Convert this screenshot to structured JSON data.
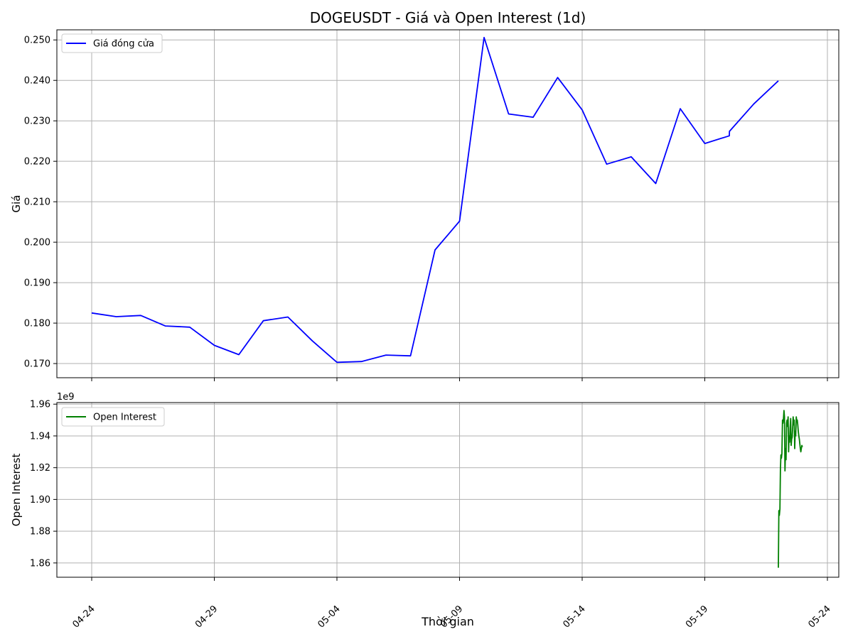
{
  "chart_data": {
    "type": "line",
    "title": "DOGEUSDT - Giá và Open Interest (1d)",
    "xlabel": "Thời gian",
    "x_ticks": [
      "04-24",
      "04-29",
      "05-04",
      "05-09",
      "05-14",
      "05-19",
      "05-24"
    ],
    "colors": {
      "price": "#0000ff",
      "oi": "#008000",
      "grid": "#b0b0b0"
    },
    "price_panel": {
      "ylabel": "Giá",
      "ylim": [
        0.1665,
        0.2525
      ],
      "y_ticks": [
        "0.170",
        "0.180",
        "0.190",
        "0.200",
        "0.210",
        "0.220",
        "0.230",
        "0.240",
        "0.250"
      ],
      "legend": "top-left",
      "grid": true,
      "series": [
        {
          "name": "Giá đóng cửa",
          "x": [
            "2025-04-24",
            "2025-04-25",
            "2025-04-26",
            "2025-04-27",
            "2025-04-28",
            "2025-04-29",
            "2025-04-30",
            "2025-05-01",
            "2025-05-02",
            "2025-05-03",
            "2025-05-04",
            "2025-05-05",
            "2025-05-06",
            "2025-05-07",
            "2025-05-08",
            "2025-05-09",
            "2025-05-10",
            "2025-05-11",
            "2025-05-12",
            "2025-05-13",
            "2025-05-14",
            "2025-05-15",
            "2025-05-16",
            "2025-05-17",
            "2025-05-18",
            "2025-05-19",
            "2025-05-20 00:00",
            "2025-05-20 00:10",
            "2025-05-21",
            "2025-05-22"
          ],
          "values": [
            0.1825,
            0.1816,
            0.1819,
            0.1793,
            0.179,
            0.1745,
            0.1722,
            0.1806,
            0.1815,
            0.1756,
            0.1703,
            0.1705,
            0.1721,
            0.1719,
            0.1981,
            0.2052,
            0.2506,
            0.2317,
            0.2309,
            0.2407,
            0.2327,
            0.2193,
            0.2211,
            0.2145,
            0.233,
            0.2244,
            0.2263,
            0.2274,
            0.2342,
            0.2399
          ]
        }
      ]
    },
    "oi_panel": {
      "ylabel": "Open Interest",
      "offset_label": "1e9",
      "ylim": [
        1.851,
        1.961
      ],
      "y_ticks": [
        "1.86",
        "1.88",
        "1.90",
        "1.92",
        "1.94",
        "1.96"
      ],
      "legend": "top-left",
      "grid": true,
      "series": [
        {
          "name": "Open Interest",
          "x": [
            "2025-05-22 00:00",
            "2025-05-22 00:30",
            "2025-05-22 01:00",
            "2025-05-22 01:30",
            "2025-05-22 02:00",
            "2025-05-22 02:30",
            "2025-05-22 03:00",
            "2025-05-22 03:30",
            "2025-05-22 04:00",
            "2025-05-22 04:30",
            "2025-05-22 05:00",
            "2025-05-22 05:30",
            "2025-05-22 06:00",
            "2025-05-22 06:30",
            "2025-05-22 07:00",
            "2025-05-22 07:30",
            "2025-05-22 08:00",
            "2025-05-22 08:30",
            "2025-05-22 09:00",
            "2025-05-22 09:30",
            "2025-05-22 10:00",
            "2025-05-22 10:30",
            "2025-05-22 11:00",
            "2025-05-22 11:30",
            "2025-05-22 12:00",
            "2025-05-22 12:30",
            "2025-05-22 13:00",
            "2025-05-22 13:30",
            "2025-05-22 14:00",
            "2025-05-22 14:30",
            "2025-05-22 15:00",
            "2025-05-22 15:30",
            "2025-05-22 16:00",
            "2025-05-22 16:30",
            "2025-05-22 17:00",
            "2025-05-22 17:30",
            "2025-05-22 18:00",
            "2025-05-22 18:30",
            "2025-05-22 19:00",
            "2025-05-22 19:30",
            "2025-05-22 20:00",
            "2025-05-22 20:30",
            "2025-05-22 21:00",
            "2025-05-22 21:30",
            "2025-05-22 22:00",
            "2025-05-22 22:30",
            "2025-05-22 23:00",
            "2025-05-22 23:30"
          ],
          "values": [
            1.857,
            1.893,
            1.89,
            1.894,
            1.919,
            1.928,
            1.926,
            1.929,
            1.95,
            1.948,
            1.951,
            1.956,
            1.952,
            1.918,
            1.932,
            1.925,
            1.948,
            1.95,
            1.946,
            1.952,
            1.93,
            1.94,
            1.936,
            1.945,
            1.951,
            1.934,
            1.938,
            1.939,
            1.945,
            1.952,
            1.947,
            1.95,
            1.932,
            1.943,
            1.94,
            1.952,
            1.949,
            1.95,
            1.947,
            1.943,
            1.94,
            1.938,
            1.935,
            1.932,
            1.93,
            1.932,
            1.934,
            1.933
          ]
        }
      ]
    }
  }
}
